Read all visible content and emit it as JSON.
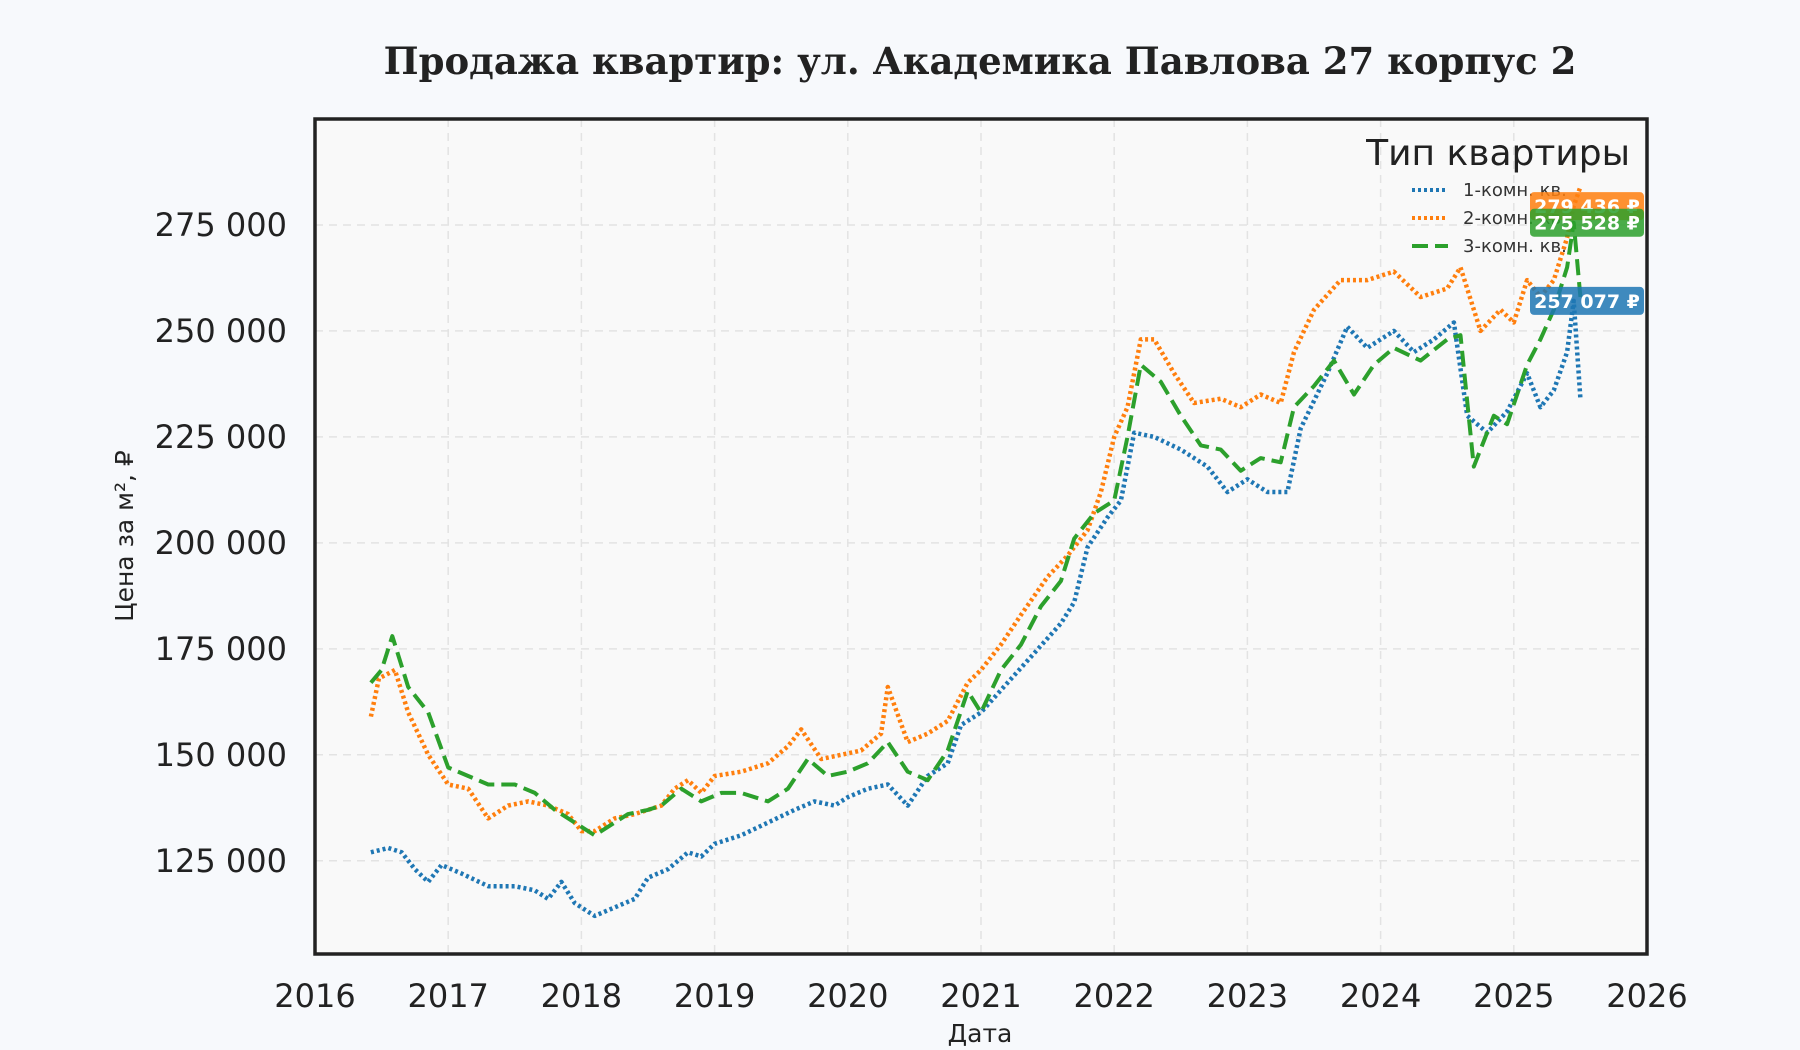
{
  "chart_data": {
    "type": "line",
    "title": "Продажа квартир: ул. Академика Павлова 27 корпус 2",
    "xlabel": "Дата",
    "ylabel": "Цена за м², ₽",
    "xlim": [
      2016,
      2026
    ],
    "ylim": [
      103000,
      300000
    ],
    "x_ticks": [
      2016,
      2017,
      2018,
      2019,
      2020,
      2021,
      2022,
      2023,
      2024,
      2025,
      2026
    ],
    "x_tick_labels": [
      "2016",
      "2017",
      "2018",
      "2019",
      "2020",
      "2021",
      "2022",
      "2023",
      "2024",
      "2025",
      "2026"
    ],
    "y_ticks": [
      125000,
      150000,
      175000,
      200000,
      225000,
      250000,
      275000
    ],
    "y_tick_labels": [
      "125 000",
      "150 000",
      "175 000",
      "200 000",
      "225 000",
      "250 000",
      "275 000"
    ],
    "grid": true,
    "legend": {
      "title": "Тип квартиры",
      "position": "top-right"
    },
    "series": [
      {
        "name": "1-комн. кв.",
        "color": "#1f77b4",
        "style": "dotted",
        "end_label": "257 077 ₽",
        "points": [
          [
            2016.42,
            127000
          ],
          [
            2016.55,
            128000
          ],
          [
            2016.65,
            127000
          ],
          [
            2016.75,
            123000
          ],
          [
            2016.85,
            120000
          ],
          [
            2016.95,
            124000
          ],
          [
            2017.1,
            122000
          ],
          [
            2017.3,
            119000
          ],
          [
            2017.5,
            119000
          ],
          [
            2017.65,
            118000
          ],
          [
            2017.75,
            116000
          ],
          [
            2017.85,
            120000
          ],
          [
            2017.95,
            115000
          ],
          [
            2018.1,
            112000
          ],
          [
            2018.25,
            114000
          ],
          [
            2018.4,
            116000
          ],
          [
            2018.5,
            121000
          ],
          [
            2018.65,
            123000
          ],
          [
            2018.8,
            127000
          ],
          [
            2018.9,
            126000
          ],
          [
            2019.0,
            129000
          ],
          [
            2019.2,
            131000
          ],
          [
            2019.4,
            134000
          ],
          [
            2019.6,
            137000
          ],
          [
            2019.75,
            139000
          ],
          [
            2019.9,
            138000
          ],
          [
            2020.0,
            140000
          ],
          [
            2020.15,
            142000
          ],
          [
            2020.3,
            143000
          ],
          [
            2020.45,
            138000
          ],
          [
            2020.6,
            145000
          ],
          [
            2020.75,
            148000
          ],
          [
            2020.85,
            157000
          ],
          [
            2021.0,
            160000
          ],
          [
            2021.2,
            167000
          ],
          [
            2021.4,
            174000
          ],
          [
            2021.6,
            181000
          ],
          [
            2021.7,
            186000
          ],
          [
            2021.8,
            199000
          ],
          [
            2021.95,
            206000
          ],
          [
            2022.05,
            210000
          ],
          [
            2022.15,
            226000
          ],
          [
            2022.3,
            225000
          ],
          [
            2022.5,
            222000
          ],
          [
            2022.7,
            218000
          ],
          [
            2022.85,
            212000
          ],
          [
            2023.0,
            215000
          ],
          [
            2023.15,
            212000
          ],
          [
            2023.3,
            212000
          ],
          [
            2023.4,
            227000
          ],
          [
            2023.6,
            240000
          ],
          [
            2023.75,
            251000
          ],
          [
            2023.9,
            246000
          ],
          [
            2024.1,
            250000
          ],
          [
            2024.25,
            245000
          ],
          [
            2024.4,
            248000
          ],
          [
            2024.55,
            252000
          ],
          [
            2024.65,
            230000
          ],
          [
            2024.8,
            226000
          ],
          [
            2024.95,
            231000
          ],
          [
            2025.1,
            240000
          ],
          [
            2025.2,
            232000
          ],
          [
            2025.3,
            236000
          ],
          [
            2025.4,
            245000
          ],
          [
            2025.45,
            257077
          ],
          [
            2025.5,
            234000
          ]
        ]
      },
      {
        "name": "2-комн. кв.",
        "color": "#ff7f0e",
        "style": "dotted",
        "end_label": "279 436 ₽",
        "points": [
          [
            2016.42,
            159000
          ],
          [
            2016.48,
            168000
          ],
          [
            2016.6,
            170000
          ],
          [
            2016.7,
            160000
          ],
          [
            2016.85,
            150000
          ],
          [
            2017.0,
            143000
          ],
          [
            2017.15,
            142000
          ],
          [
            2017.3,
            135000
          ],
          [
            2017.45,
            138000
          ],
          [
            2017.6,
            139000
          ],
          [
            2017.75,
            138000
          ],
          [
            2017.9,
            136000
          ],
          [
            2018.0,
            132000
          ],
          [
            2018.1,
            132000
          ],
          [
            2018.25,
            135000
          ],
          [
            2018.4,
            136000
          ],
          [
            2018.6,
            138000
          ],
          [
            2018.7,
            142000
          ],
          [
            2018.8,
            144000
          ],
          [
            2018.9,
            141000
          ],
          [
            2019.0,
            145000
          ],
          [
            2019.2,
            146000
          ],
          [
            2019.4,
            148000
          ],
          [
            2019.55,
            152000
          ],
          [
            2019.65,
            156000
          ],
          [
            2019.8,
            149000
          ],
          [
            2019.95,
            150000
          ],
          [
            2020.1,
            151000
          ],
          [
            2020.25,
            155000
          ],
          [
            2020.3,
            166000
          ],
          [
            2020.45,
            153000
          ],
          [
            2020.6,
            155000
          ],
          [
            2020.75,
            158000
          ],
          [
            2020.9,
            167000
          ],
          [
            2021.0,
            170000
          ],
          [
            2021.15,
            176000
          ],
          [
            2021.3,
            183000
          ],
          [
            2021.5,
            192000
          ],
          [
            2021.65,
            197000
          ],
          [
            2021.8,
            203000
          ],
          [
            2021.9,
            212000
          ],
          [
            2022.0,
            225000
          ],
          [
            2022.1,
            232000
          ],
          [
            2022.2,
            248000
          ],
          [
            2022.3,
            248000
          ],
          [
            2022.45,
            240000
          ],
          [
            2022.6,
            233000
          ],
          [
            2022.8,
            234000
          ],
          [
            2022.95,
            232000
          ],
          [
            2023.1,
            235000
          ],
          [
            2023.25,
            233000
          ],
          [
            2023.35,
            245000
          ],
          [
            2023.5,
            255000
          ],
          [
            2023.7,
            262000
          ],
          [
            2023.9,
            262000
          ],
          [
            2024.1,
            264000
          ],
          [
            2024.3,
            258000
          ],
          [
            2024.5,
            260000
          ],
          [
            2024.6,
            265000
          ],
          [
            2024.75,
            250000
          ],
          [
            2024.9,
            255000
          ],
          [
            2025.0,
            252000
          ],
          [
            2025.1,
            262000
          ],
          [
            2025.2,
            258000
          ],
          [
            2025.3,
            262000
          ],
          [
            2025.4,
            272000
          ],
          [
            2025.45,
            279436
          ],
          [
            2025.5,
            284000
          ]
        ]
      },
      {
        "name": "3-комн. кв.",
        "color": "#2ca02c",
        "style": "dashed",
        "end_label": "275 528 ₽",
        "points": [
          [
            2016.42,
            167000
          ],
          [
            2016.5,
            170000
          ],
          [
            2016.58,
            178000
          ],
          [
            2016.7,
            166000
          ],
          [
            2016.85,
            160000
          ],
          [
            2017.0,
            147000
          ],
          [
            2017.15,
            145000
          ],
          [
            2017.3,
            143000
          ],
          [
            2017.5,
            143000
          ],
          [
            2017.65,
            141000
          ],
          [
            2017.8,
            137000
          ],
          [
            2017.95,
            134000
          ],
          [
            2018.1,
            131000
          ],
          [
            2018.2,
            133000
          ],
          [
            2018.35,
            136000
          ],
          [
            2018.5,
            137000
          ],
          [
            2018.6,
            138000
          ],
          [
            2018.75,
            142000
          ],
          [
            2018.9,
            139000
          ],
          [
            2019.05,
            141000
          ],
          [
            2019.2,
            141000
          ],
          [
            2019.4,
            139000
          ],
          [
            2019.55,
            142000
          ],
          [
            2019.7,
            149000
          ],
          [
            2019.85,
            145000
          ],
          [
            2020.0,
            146000
          ],
          [
            2020.15,
            148000
          ],
          [
            2020.3,
            153000
          ],
          [
            2020.45,
            146000
          ],
          [
            2020.6,
            144000
          ],
          [
            2020.75,
            151000
          ],
          [
            2020.9,
            165000
          ],
          [
            2021.0,
            160000
          ],
          [
            2021.15,
            170000
          ],
          [
            2021.3,
            176000
          ],
          [
            2021.45,
            185000
          ],
          [
            2021.6,
            191000
          ],
          [
            2021.7,
            201000
          ],
          [
            2021.85,
            207000
          ],
          [
            2022.0,
            210000
          ],
          [
            2022.1,
            225000
          ],
          [
            2022.2,
            242000
          ],
          [
            2022.35,
            238000
          ],
          [
            2022.5,
            230000
          ],
          [
            2022.65,
            223000
          ],
          [
            2022.8,
            222000
          ],
          [
            2022.95,
            217000
          ],
          [
            2023.1,
            220000
          ],
          [
            2023.25,
            219000
          ],
          [
            2023.35,
            232000
          ],
          [
            2023.5,
            237000
          ],
          [
            2023.65,
            243000
          ],
          [
            2023.8,
            235000
          ],
          [
            2023.95,
            242000
          ],
          [
            2024.1,
            246000
          ],
          [
            2024.3,
            243000
          ],
          [
            2024.5,
            248000
          ],
          [
            2024.6,
            249000
          ],
          [
            2024.7,
            218000
          ],
          [
            2024.85,
            230000
          ],
          [
            2024.95,
            228000
          ],
          [
            2025.1,
            242000
          ],
          [
            2025.2,
            248000
          ],
          [
            2025.3,
            255000
          ],
          [
            2025.4,
            265000
          ],
          [
            2025.45,
            275528
          ],
          [
            2025.5,
            258000
          ]
        ]
      }
    ]
  }
}
